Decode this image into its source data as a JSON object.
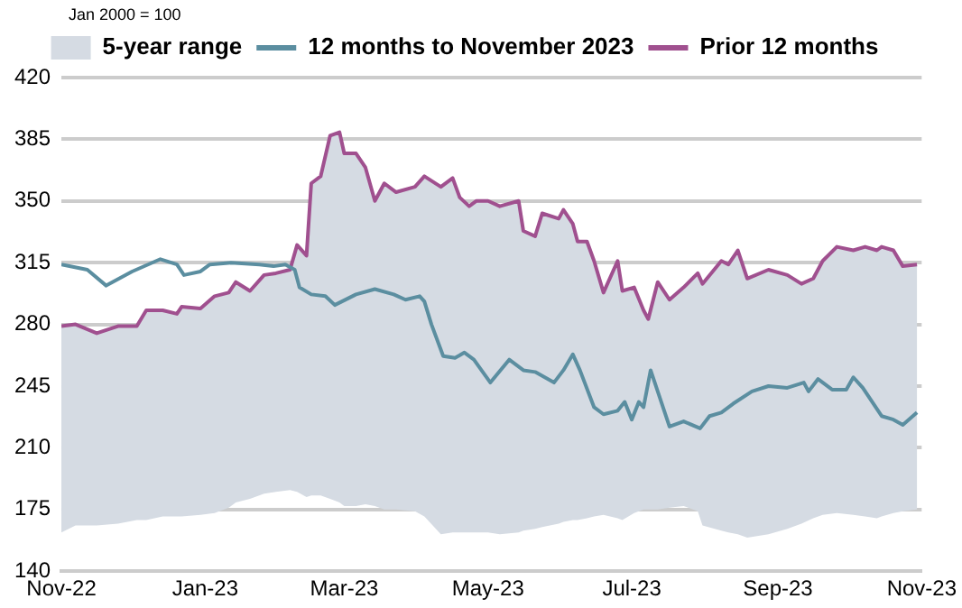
{
  "chart_data": {
    "type": "line",
    "ylabel": "Jan 2000 = 100",
    "xlim": [
      "2022-11-01",
      "2023-11-01"
    ],
    "xticks": [
      {
        "value": "2022-11-01",
        "label": "Nov-22"
      },
      {
        "value": "2023-01-01",
        "label": "Jan-23"
      },
      {
        "value": "2023-03-01",
        "label": "Mar-23"
      },
      {
        "value": "2023-05-01",
        "label": "May-23"
      },
      {
        "value": "2023-07-01",
        "label": "Jul-23"
      },
      {
        "value": "2023-09-01",
        "label": "Sep-23"
      },
      {
        "value": "2023-11-01",
        "label": "Nov-23"
      }
    ],
    "ylim": [
      140,
      420
    ],
    "yticks": [
      140,
      175,
      210,
      245,
      280,
      315,
      350,
      385,
      420
    ],
    "grid": "y",
    "legend": "top",
    "marker": "none",
    "line_style": "solid",
    "series": [
      {
        "name": "5-year range",
        "type": "area",
        "color": "#d5dbe3",
        "x": [
          "2022-11-01",
          "2022-11-07",
          "2022-11-16",
          "2022-11-25",
          "2022-12-03",
          "2022-12-07",
          "2022-12-14",
          "2022-12-20",
          "2022-12-22",
          "2022-12-30",
          "2023-01-05",
          "2023-01-11",
          "2023-01-14",
          "2023-01-20",
          "2023-01-26",
          "2023-01-31",
          "2023-02-06",
          "2023-02-09",
          "2023-02-13",
          "2023-02-15",
          "2023-02-19",
          "2023-02-23",
          "2023-02-27",
          "2023-03-01",
          "2023-03-06",
          "2023-03-10",
          "2023-03-14",
          "2023-03-18",
          "2023-03-23",
          "2023-03-31",
          "2023-04-04",
          "2023-04-11",
          "2023-04-16",
          "2023-04-19",
          "2023-04-23",
          "2023-04-26",
          "2023-05-01",
          "2023-05-06",
          "2023-05-14",
          "2023-05-16",
          "2023-05-21",
          "2023-05-24",
          "2023-05-31",
          "2023-06-02",
          "2023-06-06",
          "2023-06-08",
          "2023-06-12",
          "2023-06-15",
          "2023-06-19",
          "2023-06-25",
          "2023-06-27",
          "2023-07-02",
          "2023-07-06",
          "2023-07-08",
          "2023-07-12",
          "2023-07-17",
          "2023-07-23",
          "2023-07-29",
          "2023-07-31",
          "2023-08-08",
          "2023-08-11",
          "2023-08-15",
          "2023-08-19",
          "2023-08-28",
          "2023-09-05",
          "2023-09-11",
          "2023-09-16",
          "2023-09-20",
          "2023-09-26",
          "2023-10-03",
          "2023-10-08",
          "2023-10-13",
          "2023-10-15",
          "2023-10-20",
          "2023-10-24",
          "2023-10-30"
        ],
        "lower": [
          162,
          166,
          166,
          167,
          169,
          169,
          171,
          171,
          171,
          172,
          173,
          176,
          179,
          181,
          184,
          185,
          186,
          185,
          182,
          183,
          183,
          181,
          179,
          177,
          177,
          178,
          177,
          175,
          175,
          174,
          171,
          161,
          162,
          162,
          162,
          162,
          162,
          161,
          162,
          163,
          164,
          165,
          167,
          168,
          169,
          169,
          170,
          171,
          172,
          170,
          169,
          173,
          175,
          175,
          175,
          176,
          177,
          174,
          166,
          163,
          162,
          161,
          159,
          161,
          164,
          167,
          170,
          172,
          173,
          172,
          171,
          170,
          171,
          173,
          174,
          175
        ],
        "values": [
          null,
          null,
          null,
          null,
          null,
          null,
          null,
          null,
          null,
          null,
          null,
          null,
          null,
          null,
          null,
          null,
          null,
          null,
          null,
          null,
          null,
          null,
          null,
          null,
          null,
          null,
          null,
          null,
          null,
          null,
          null,
          null,
          null,
          null,
          null,
          null,
          null,
          null,
          null,
          null,
          null,
          null,
          null,
          null,
          null,
          null,
          null,
          null,
          null,
          null,
          null,
          null,
          null,
          null,
          null,
          null,
          null,
          null,
          null,
          null,
          null,
          null,
          null,
          null,
          null,
          null,
          null,
          null,
          null,
          null,
          null,
          null,
          null,
          null,
          null,
          null
        ],
        "upper": [
          279,
          280,
          275,
          279,
          279,
          288,
          288,
          286,
          290,
          289,
          296,
          298,
          304,
          299,
          308,
          309,
          311,
          325,
          319,
          360,
          364,
          387,
          389,
          377,
          377,
          369,
          350,
          360,
          355,
          358,
          364,
          358,
          363,
          352,
          347,
          350,
          350,
          347,
          350,
          333,
          330,
          343,
          340,
          345,
          337,
          327,
          327,
          316,
          298,
          316,
          299,
          301,
          288,
          283,
          304,
          294,
          301,
          309,
          303,
          316,
          314,
          322,
          306,
          311,
          308,
          303,
          306,
          316,
          324,
          322,
          324,
          322,
          324,
          322,
          313,
          314
        ]
      },
      {
        "name": "12 months to November 2023",
        "type": "line",
        "color": "#5b8ea0",
        "x": [
          "2022-11-01",
          "2022-11-12",
          "2022-11-20",
          "2022-12-01",
          "2022-12-13",
          "2022-12-20",
          "2022-12-23",
          "2022-12-30",
          "2023-01-03",
          "2023-01-12",
          "2023-01-24",
          "2023-01-30",
          "2023-02-04",
          "2023-02-08",
          "2023-02-10",
          "2023-02-15",
          "2023-02-21",
          "2023-02-25",
          "2023-03-06",
          "2023-03-14",
          "2023-03-22",
          "2023-03-27",
          "2023-04-02",
          "2023-04-04",
          "2023-04-07",
          "2023-04-12",
          "2023-04-17",
          "2023-04-21",
          "2023-04-25",
          "2023-05-02",
          "2023-05-10",
          "2023-05-16",
          "2023-05-21",
          "2023-05-29",
          "2023-06-02",
          "2023-06-06",
          "2023-06-09",
          "2023-06-15",
          "2023-06-19",
          "2023-06-25",
          "2023-06-28",
          "2023-07-01",
          "2023-07-04",
          "2023-07-06",
          "2023-07-09",
          "2023-07-17",
          "2023-07-23",
          "2023-07-30",
          "2023-08-03",
          "2023-08-08",
          "2023-08-13",
          "2023-08-21",
          "2023-08-28",
          "2023-09-05",
          "2023-09-12",
          "2023-09-14",
          "2023-09-18",
          "2023-09-24",
          "2023-09-30",
          "2023-10-03",
          "2023-10-07",
          "2023-10-15",
          "2023-10-20",
          "2023-10-24",
          "2023-10-30"
        ],
        "values": [
          314,
          311,
          302,
          310,
          317,
          314,
          308,
          310,
          314,
          315,
          314,
          313,
          314,
          311,
          301,
          297,
          296,
          291,
          297,
          300,
          297,
          294,
          296,
          293,
          280,
          262,
          261,
          264,
          260,
          247,
          260,
          254,
          253,
          247,
          254,
          263,
          254,
          233,
          229,
          231,
          236,
          226,
          236,
          233,
          254,
          222,
          225,
          221,
          228,
          230,
          235,
          242,
          245,
          244,
          247,
          242,
          249,
          243,
          243,
          250,
          244,
          228,
          226,
          223,
          230
        ]
      },
      {
        "name": "Prior 12 months",
        "type": "line",
        "color": "#a0508f",
        "x": [
          "2022-11-01",
          "2022-11-07",
          "2022-11-16",
          "2022-11-25",
          "2022-12-03",
          "2022-12-07",
          "2022-12-14",
          "2022-12-20",
          "2022-12-22",
          "2022-12-30",
          "2023-01-05",
          "2023-01-11",
          "2023-01-14",
          "2023-01-20",
          "2023-01-26",
          "2023-01-31",
          "2023-02-06",
          "2023-02-09",
          "2023-02-13",
          "2023-02-15",
          "2023-02-19",
          "2023-02-23",
          "2023-02-27",
          "2023-03-01",
          "2023-03-06",
          "2023-03-10",
          "2023-03-14",
          "2023-03-18",
          "2023-03-23",
          "2023-03-31",
          "2023-04-04",
          "2023-04-11",
          "2023-04-16",
          "2023-04-19",
          "2023-04-23",
          "2023-04-26",
          "2023-05-01",
          "2023-05-06",
          "2023-05-14",
          "2023-05-16",
          "2023-05-21",
          "2023-05-24",
          "2023-05-31",
          "2023-06-02",
          "2023-06-06",
          "2023-06-08",
          "2023-06-12",
          "2023-06-15",
          "2023-06-19",
          "2023-06-25",
          "2023-06-27",
          "2023-07-02",
          "2023-07-06",
          "2023-07-08",
          "2023-07-12",
          "2023-07-17",
          "2023-07-23",
          "2023-07-29",
          "2023-07-31",
          "2023-08-08",
          "2023-08-11",
          "2023-08-15",
          "2023-08-19",
          "2023-08-28",
          "2023-09-05",
          "2023-09-11",
          "2023-09-16",
          "2023-09-20",
          "2023-09-26",
          "2023-10-03",
          "2023-10-08",
          "2023-10-13",
          "2023-10-15",
          "2023-10-20",
          "2023-10-24",
          "2023-10-30"
        ],
        "values": [
          279,
          280,
          275,
          279,
          279,
          288,
          288,
          286,
          290,
          289,
          296,
          298,
          304,
          299,
          308,
          309,
          311,
          325,
          319,
          360,
          364,
          387,
          389,
          377,
          377,
          369,
          350,
          360,
          355,
          358,
          364,
          358,
          363,
          352,
          347,
          350,
          350,
          347,
          350,
          333,
          330,
          343,
          340,
          345,
          337,
          327,
          327,
          316,
          298,
          316,
          299,
          301,
          288,
          283,
          304,
          294,
          301,
          309,
          303,
          316,
          314,
          322,
          306,
          311,
          308,
          303,
          306,
          316,
          324,
          322,
          324,
          322,
          324,
          322,
          313,
          314
        ]
      }
    ]
  }
}
